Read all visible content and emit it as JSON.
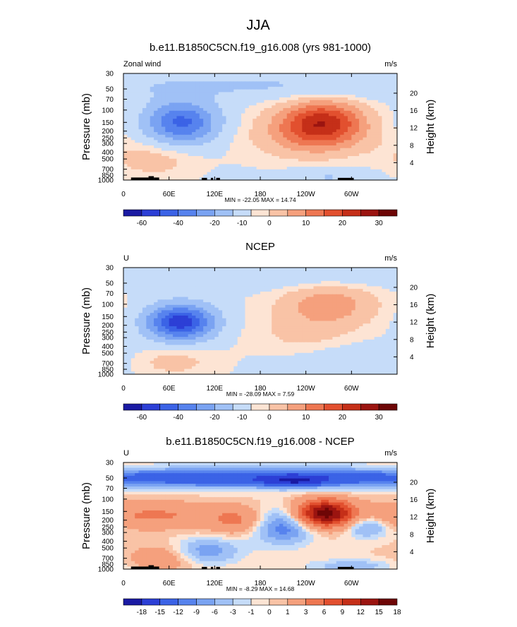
{
  "figure_title": "JJA",
  "chart_data": [
    {
      "type": "contour",
      "title": "b.e11.B1850C5CN.f19_g16.008 (yrs 981-1000)",
      "left_label": "Zonal wind",
      "units": "m/s",
      "ylabel": "Pressure (mb)",
      "ylabel_right": "Height (km)",
      "pressure_ticks": [
        "30",
        "50",
        "70",
        "100",
        "150",
        "200",
        "250",
        "300",
        "400",
        "500",
        "700",
        "850",
        "1000"
      ],
      "pressure_values": [
        30,
        50,
        70,
        100,
        150,
        200,
        250,
        300,
        400,
        500,
        700,
        850,
        1000
      ],
      "height_ticks": [
        "4",
        "8",
        "12",
        "16",
        "20"
      ],
      "height_values": [
        4,
        8,
        12,
        16,
        20
      ],
      "x_ticks": [
        "0",
        "60E",
        "120E",
        "180",
        "120W",
        "60W"
      ],
      "x_values": [
        0,
        60,
        120,
        180,
        240,
        300
      ],
      "x_range": [
        0,
        360
      ],
      "stats": "MIN = -22.05  MAX =  14.74",
      "colorbar_labels": [
        "-60",
        "-40",
        "-20",
        "-10",
        "0",
        "10",
        "20",
        "30"
      ],
      "features": [
        {
          "lon": 77,
          "p": 150,
          "w": 32,
          "h": 0.95,
          "amp": -20
        },
        {
          "lon": 262,
          "p": 150,
          "w": 38,
          "h": 1.05,
          "amp": 14
        },
        {
          "lon": 240,
          "p": 230,
          "w": 60,
          "h": 1.2,
          "amp": 5
        },
        {
          "lon": 40,
          "p": 500,
          "w": 40,
          "h": 0.9,
          "amp": 4
        },
        {
          "lon": 270,
          "p": 900,
          "w": 40,
          "h": 0.4,
          "amp": -4
        },
        {
          "lon": 180,
          "p": 45,
          "w": 200,
          "h": 0.6,
          "amp": -4
        }
      ],
      "base": -1.5,
      "topography": true
    },
    {
      "type": "contour",
      "title": "NCEP",
      "left_label": "U",
      "units": "m/s",
      "ylabel": "Pressure (mb)",
      "ylabel_right": "Height (km)",
      "pressure_ticks": [
        "30",
        "50",
        "70",
        "100",
        "150",
        "200",
        "250",
        "300",
        "400",
        "500",
        "700",
        "850",
        "1000"
      ],
      "pressure_values": [
        30,
        50,
        70,
        100,
        150,
        200,
        250,
        300,
        400,
        500,
        700,
        850,
        1000
      ],
      "height_ticks": [
        "4",
        "8",
        "12",
        "16",
        "20"
      ],
      "height_values": [
        4,
        8,
        12,
        16,
        20
      ],
      "x_ticks": [
        "0",
        "60E",
        "120E",
        "180",
        "120W",
        "60W"
      ],
      "x_values": [
        0,
        60,
        120,
        180,
        240,
        300
      ],
      "x_range": [
        0,
        360
      ],
      "stats": "MIN = -28.09  MAX =   7.59",
      "colorbar_labels": [
        "-60",
        "-40",
        "-20",
        "-10",
        "0",
        "10",
        "20",
        "30"
      ],
      "features": [
        {
          "lon": 75,
          "p": 180,
          "w": 30,
          "h": 0.8,
          "amp": -27
        },
        {
          "lon": 270,
          "p": 100,
          "w": 45,
          "h": 1.0,
          "amp": 7
        },
        {
          "lon": 240,
          "p": 300,
          "w": 50,
          "h": 1.1,
          "amp": 3
        },
        {
          "lon": 60,
          "p": 650,
          "w": 40,
          "h": 0.7,
          "amp": 4
        },
        {
          "lon": 300,
          "p": 600,
          "w": 70,
          "h": 0.8,
          "amp": -3
        },
        {
          "lon": 180,
          "p": 40,
          "w": 200,
          "h": 0.6,
          "amp": -3
        }
      ],
      "base": -1.2,
      "topography": false
    },
    {
      "type": "contour",
      "title": "b.e11.B1850C5CN.f19_g16.008 - NCEP",
      "left_label": "U",
      "units": "m/s",
      "ylabel": "Pressure (mb)",
      "ylabel_right": "Height (km)",
      "pressure_ticks": [
        "30",
        "50",
        "70",
        "100",
        "150",
        "200",
        "250",
        "300",
        "400",
        "500",
        "700",
        "850",
        "1000"
      ],
      "pressure_values": [
        30,
        50,
        70,
        100,
        150,
        200,
        250,
        300,
        400,
        500,
        700,
        850,
        1000
      ],
      "height_ticks": [
        "4",
        "8",
        "12",
        "16",
        "20"
      ],
      "height_values": [
        4,
        8,
        12,
        16,
        20
      ],
      "x_ticks": [
        "0",
        "60E",
        "120E",
        "180",
        "120W",
        "60W"
      ],
      "x_values": [
        0,
        60,
        120,
        180,
        240,
        300
      ],
      "x_range": [
        0,
        360
      ],
      "stats": "MIN =  -8.29  MAX =  14.68",
      "colorbar_labels": [
        "-18",
        "-15",
        "-12",
        "-9",
        "-6",
        "-3",
        "-1",
        "0",
        "1",
        "3",
        "6",
        "9",
        "12",
        "15",
        "18"
      ],
      "features": [
        {
          "lon": 180,
          "p": 50,
          "w": 260,
          "h": 0.45,
          "amp": -6
        },
        {
          "lon": 225,
          "p": 55,
          "w": 25,
          "h": 0.25,
          "amp": -5
        },
        {
          "lon": 265,
          "p": 160,
          "w": 25,
          "h": 0.6,
          "amp": 12
        },
        {
          "lon": 40,
          "p": 170,
          "w": 60,
          "h": 0.6,
          "amp": 3
        },
        {
          "lon": 150,
          "p": 200,
          "w": 25,
          "h": 0.6,
          "amp": 3
        },
        {
          "lon": 210,
          "p": 250,
          "w": 28,
          "h": 0.8,
          "amp": -4
        },
        {
          "lon": 110,
          "p": 550,
          "w": 30,
          "h": 0.6,
          "amp": -3
        },
        {
          "lon": 320,
          "p": 250,
          "w": 20,
          "h": 0.5,
          "amp": -3
        },
        {
          "lon": 50,
          "p": 700,
          "w": 30,
          "h": 0.6,
          "amp": 2
        },
        {
          "lon": 300,
          "p": 900,
          "w": 40,
          "h": 0.3,
          "amp": -2
        }
      ],
      "base": 0.3,
      "topography": true
    }
  ],
  "colors": {
    "ramp": [
      "#1a1aa3",
      "#2c3fd6",
      "#3b63e6",
      "#5783ee",
      "#7aa3f2",
      "#a0c1f6",
      "#c6dcf9",
      "#fde4d4",
      "#f9c3a6",
      "#f5a07d",
      "#ee7752",
      "#e2502f",
      "#c52f18",
      "#9b1410",
      "#6e0606"
    ],
    "land": "#000000"
  }
}
